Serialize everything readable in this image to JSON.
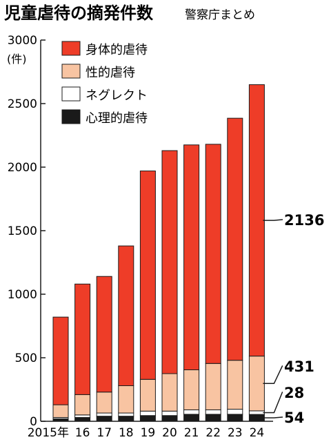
{
  "chart_data": {
    "type": "bar",
    "stacked": true,
    "title": "児童虐待の摘発件数",
    "subtitle": "警察庁まとめ",
    "ylabel": "(件)",
    "xlabel": "",
    "ylim": [
      0,
      3000
    ],
    "yticks": [
      0,
      500,
      1000,
      1500,
      2000,
      2500,
      3000
    ],
    "categories": [
      "2015年",
      "16",
      "17",
      "18",
      "19",
      "20",
      "21",
      "22",
      "23",
      "24"
    ],
    "series": [
      {
        "name": "心理的虐待",
        "color": "#1a1a1a",
        "values": [
          20,
          30,
          40,
          40,
          45,
          45,
          55,
          55,
          55,
          54
        ]
      },
      {
        "name": "ネグレクト",
        "color": "#ffffff",
        "values": [
          10,
          20,
          25,
          25,
          35,
          35,
          35,
          35,
          40,
          28
        ]
      },
      {
        "name": "性的虐待",
        "color": "#f8c4a2",
        "values": [
          100,
          160,
          165,
          215,
          250,
          295,
          315,
          365,
          385,
          431
        ]
      },
      {
        "name": "身体的虐待",
        "color": "#ee3d28",
        "values": [
          690,
          870,
          910,
          1100,
          1640,
          1755,
          1770,
          1725,
          1905,
          2136
        ]
      }
    ],
    "legend_position": "top-left",
    "grid": false,
    "callouts": [
      {
        "series": "身体的虐待",
        "category": "24",
        "label": "2136"
      },
      {
        "series": "性的虐待",
        "category": "24",
        "label": "431"
      },
      {
        "series": "ネグレクト",
        "category": "24",
        "label": "28"
      },
      {
        "series": "心理的虐待",
        "category": "24",
        "label": "54"
      }
    ]
  },
  "colors": {
    "bar_stroke": "#1a1a1a",
    "axis": "#1a1a1a"
  }
}
